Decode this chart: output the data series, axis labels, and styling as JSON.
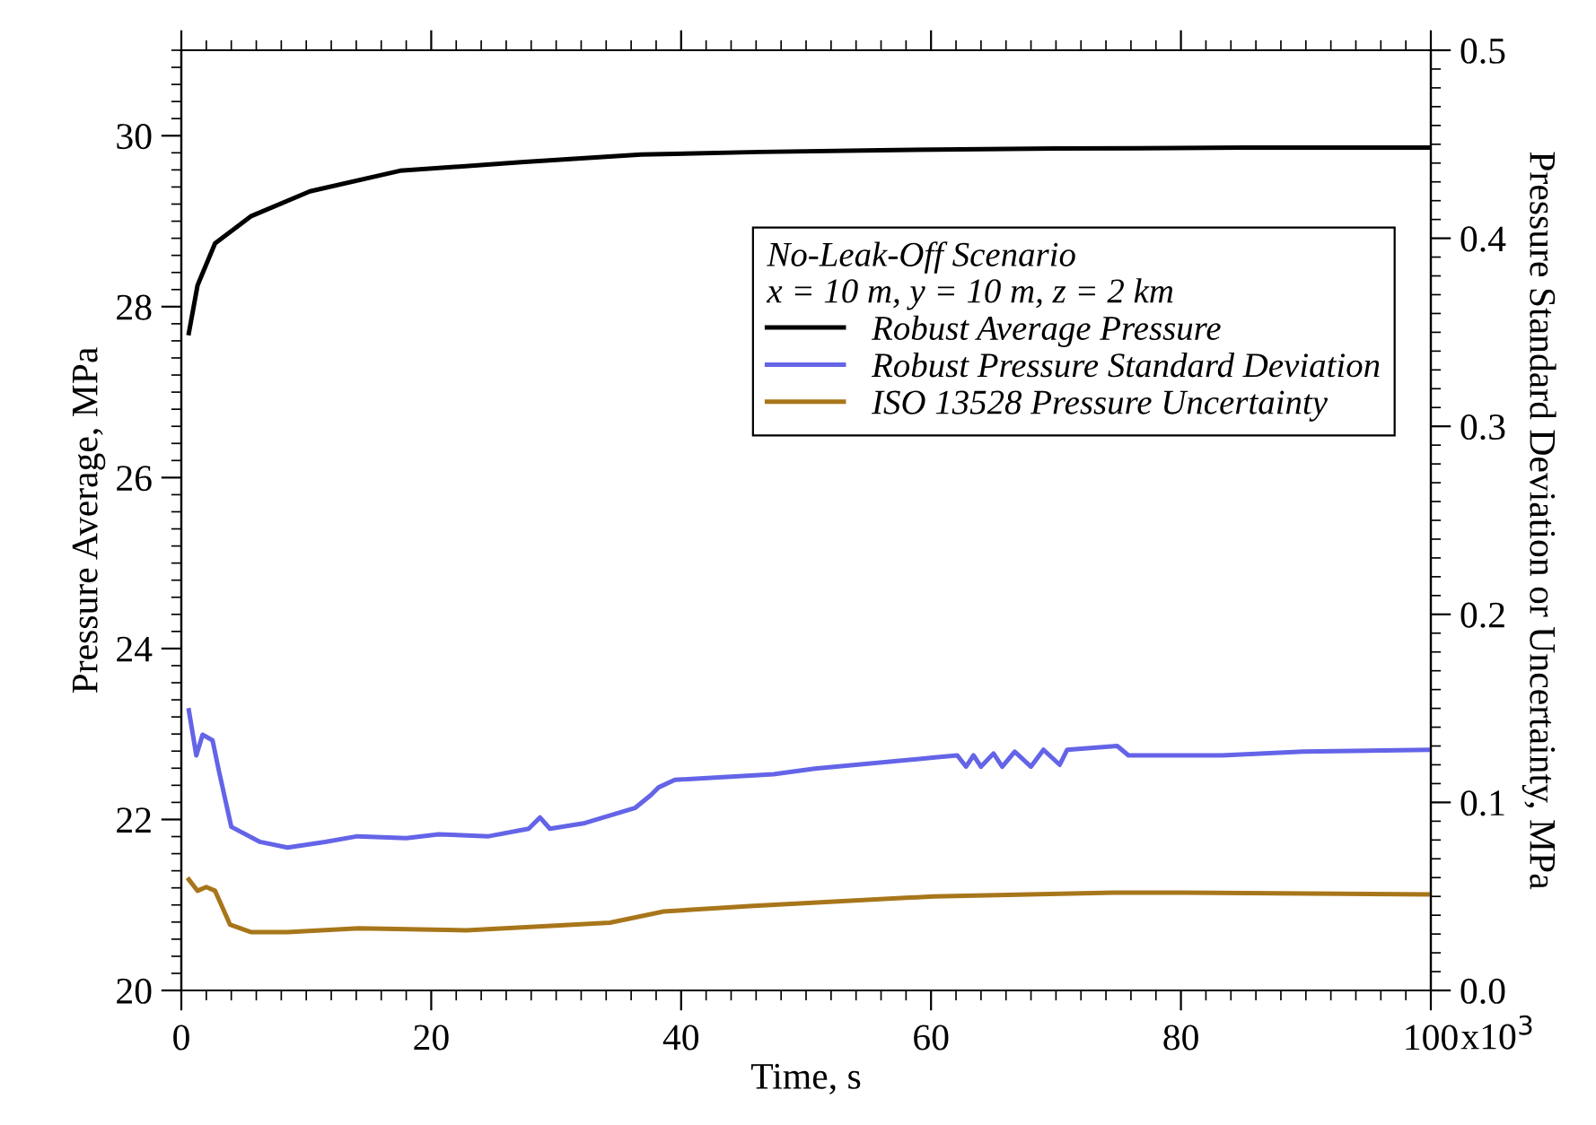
{
  "chart_data": {
    "type": "line",
    "xlabel": "Time, s",
    "ylabel": "Pressure Average, MPa",
    "y2label": "Pressure Standard Deviation or Uncertainty, MPa",
    "legend_title": "No-Leak-Off Scenario\nx = 10 m, y = 10 m, z = 2 km",
    "legend": "top right",
    "grid": false,
    "marker": "none",
    "line_style": "solid",
    "xlim": [
      0,
      100
    ],
    "xticks": [
      0,
      20,
      40,
      60,
      80,
      100
    ],
    "annotations": [
      "x10$^{3}$"
    ],
    "ylim": [
      20,
      31
    ],
    "yticks": [
      20,
      22,
      24,
      26,
      28,
      30
    ],
    "y2lim": [
      0,
      0.5
    ],
    "y2ticks": [
      {
        "value": 0,
        "label": "0.0"
      },
      0.1,
      0.2,
      0.3,
      0.4,
      0.5
    ],
    "series": [
      {
        "name": "Robust Average Pressure",
        "color": "#000000",
        "x": [
          0.6,
          1.3,
          2.7,
          5.6,
          10.3,
          17.5,
          27.2,
          36.8,
          46.3,
          55.9,
          70,
          85,
          100
        ],
        "values": [
          27.69,
          28.25,
          28.74,
          29.06,
          29.35,
          29.59,
          29.69,
          29.78,
          29.81,
          29.83,
          29.85,
          29.86,
          29.86
        ]
      },
      {
        "name": "Robust Pressure Standard Deviation",
        "color": "#6464e8",
        "axis": "y2",
        "x": [
          0.6,
          1.2,
          1.7,
          2.5,
          3.0,
          4.0,
          6.3,
          8.5,
          11.5,
          14.1,
          18.0,
          20.6,
          24.6,
          27.8,
          28.7,
          29.5,
          32.3,
          36.3,
          37.6,
          38.2,
          39.5,
          47.4,
          50.7,
          60.5,
          62.1,
          62.8,
          63.4,
          64.0,
          65.0,
          65.7,
          66.7,
          68.0,
          69.0,
          70.3,
          70.9,
          74.9,
          75.8,
          83.3,
          89.8,
          100
        ],
        "values": [
          0.149,
          0.125,
          0.136,
          0.133,
          0.117,
          0.087,
          0.079,
          0.076,
          0.079,
          0.082,
          0.081,
          0.083,
          0.082,
          0.086,
          0.092,
          0.086,
          0.089,
          0.097,
          0.104,
          0.108,
          0.112,
          0.115,
          0.118,
          0.124,
          0.125,
          0.119,
          0.125,
          0.119,
          0.126,
          0.119,
          0.127,
          0.119,
          0.128,
          0.12,
          0.128,
          0.13,
          0.125,
          0.125,
          0.127,
          0.128
        ]
      },
      {
        "name": "ISO 13528 Pressure Uncertainty",
        "color": "#a8761a",
        "axis": "y2",
        "x": [
          0.6,
          1.3,
          2.0,
          2.7,
          3.9,
          5.6,
          8.5,
          14.2,
          22.8,
          28.6,
          34.3,
          38.6,
          45.8,
          60.2,
          74.6,
          80.3,
          100
        ],
        "values": [
          0.059,
          0.053,
          0.055,
          0.053,
          0.035,
          0.031,
          0.031,
          0.033,
          0.032,
          0.034,
          0.036,
          0.042,
          0.045,
          0.05,
          0.052,
          0.052,
          0.051
        ]
      }
    ]
  }
}
